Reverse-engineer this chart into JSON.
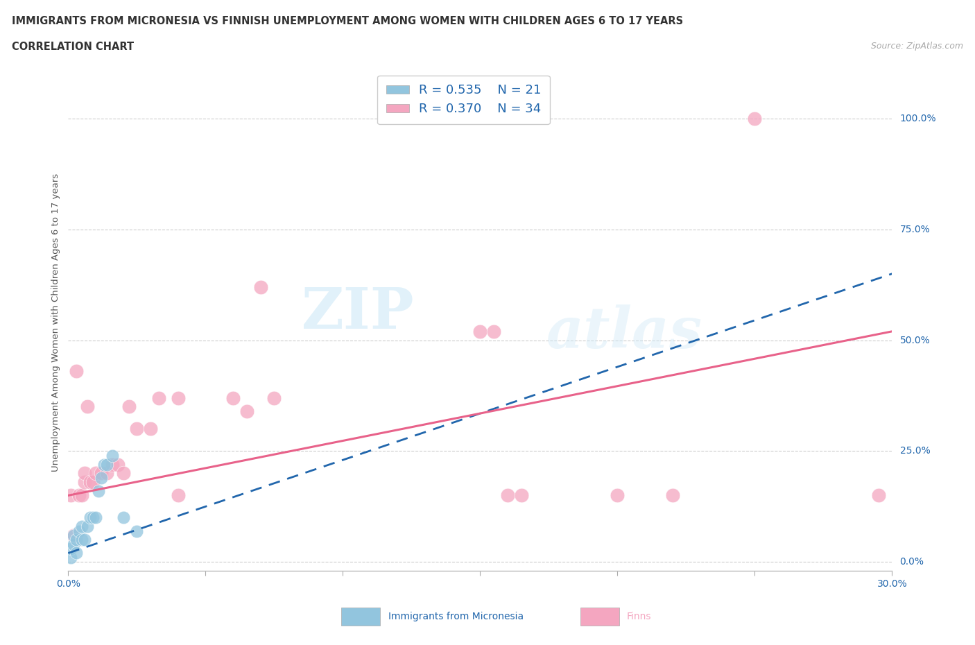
{
  "title": "IMMIGRANTS FROM MICRONESIA VS FINNISH UNEMPLOYMENT AMONG WOMEN WITH CHILDREN AGES 6 TO 17 YEARS",
  "subtitle": "CORRELATION CHART",
  "source": "Source: ZipAtlas.com",
  "ylabel": "Unemployment Among Women with Children Ages 6 to 17 years",
  "legend_label1": "Immigrants from Micronesia",
  "legend_label2": "Finns",
  "R1": 0.535,
  "N1": 21,
  "R2": 0.37,
  "N2": 34,
  "color_blue": "#92c5de",
  "color_pink": "#f4a6c0",
  "color_blue_line": "#2166ac",
  "color_pink_line": "#e8628a",
  "color_blue_text": "#2166ac",
  "xlim": [
    0.0,
    0.3
  ],
  "ylim": [
    -0.02,
    1.1
  ],
  "yticks": [
    0.0,
    0.25,
    0.5,
    0.75,
    1.0
  ],
  "ytick_labels": [
    "0.0%",
    "25.0%",
    "50.0%",
    "75.0%",
    "100.0%"
  ],
  "xticks": [
    0.0,
    0.05,
    0.1,
    0.15,
    0.2,
    0.25,
    0.3
  ],
  "xtick_labels": [
    "0.0%",
    "",
    "",
    "",
    "",
    "",
    "30.0%"
  ],
  "blue_x": [
    0.001,
    0.001,
    0.002,
    0.002,
    0.003,
    0.003,
    0.004,
    0.005,
    0.005,
    0.006,
    0.007,
    0.008,
    0.009,
    0.01,
    0.011,
    0.012,
    0.013,
    0.014,
    0.016,
    0.02,
    0.025
  ],
  "blue_y": [
    0.01,
    0.03,
    0.04,
    0.06,
    0.02,
    0.05,
    0.07,
    0.05,
    0.08,
    0.05,
    0.08,
    0.1,
    0.1,
    0.1,
    0.16,
    0.19,
    0.22,
    0.22,
    0.24,
    0.1,
    0.07
  ],
  "pink_x": [
    0.001,
    0.002,
    0.003,
    0.004,
    0.005,
    0.006,
    0.006,
    0.007,
    0.008,
    0.009,
    0.01,
    0.012,
    0.014,
    0.016,
    0.018,
    0.02,
    0.022,
    0.025,
    0.03,
    0.033,
    0.04,
    0.04,
    0.06,
    0.065,
    0.07,
    0.075,
    0.15,
    0.155,
    0.16,
    0.165,
    0.2,
    0.22,
    0.25,
    0.295
  ],
  "pink_y": [
    0.15,
    0.06,
    0.43,
    0.15,
    0.15,
    0.18,
    0.2,
    0.35,
    0.18,
    0.18,
    0.2,
    0.2,
    0.2,
    0.22,
    0.22,
    0.2,
    0.35,
    0.3,
    0.3,
    0.37,
    0.37,
    0.15,
    0.37,
    0.34,
    0.62,
    0.37,
    0.52,
    0.52,
    0.15,
    0.15,
    0.15,
    0.15,
    1.0,
    0.15
  ],
  "blue_line_x0": 0.0,
  "blue_line_y0": 0.02,
  "blue_line_x1": 0.3,
  "blue_line_y1": 0.65,
  "pink_line_x0": 0.0,
  "pink_line_y0": 0.15,
  "pink_line_x1": 0.3,
  "pink_line_y1": 0.52,
  "background_color": "#ffffff",
  "grid_color": "#cccccc",
  "watermark_zip": "ZIP",
  "watermark_atlas": "atlas"
}
